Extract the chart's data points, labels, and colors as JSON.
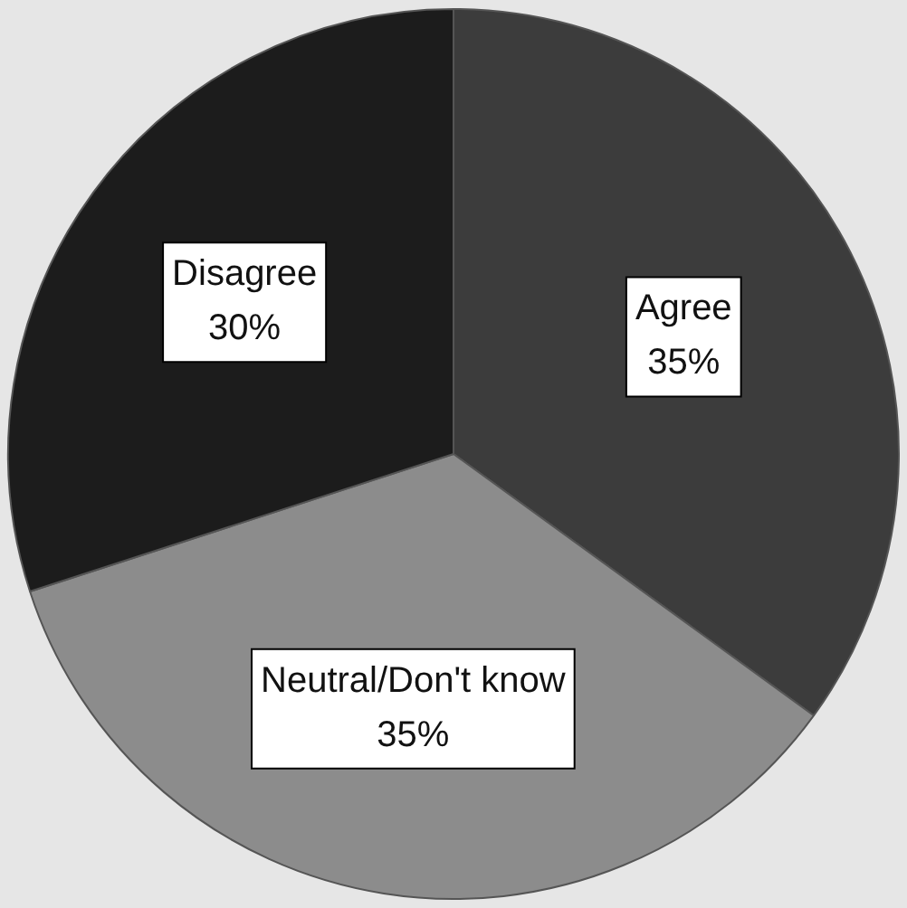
{
  "chart_data": {
    "type": "pie",
    "categories": [
      "Agree",
      "Neutral/Don't know",
      "Disagree"
    ],
    "values": [
      35,
      35,
      30
    ],
    "colors": [
      "#3c3c3c",
      "#8c8c8c",
      "#1c1c1c"
    ],
    "value_labels": [
      "35%",
      "35%",
      "30%"
    ],
    "legend": false
  }
}
